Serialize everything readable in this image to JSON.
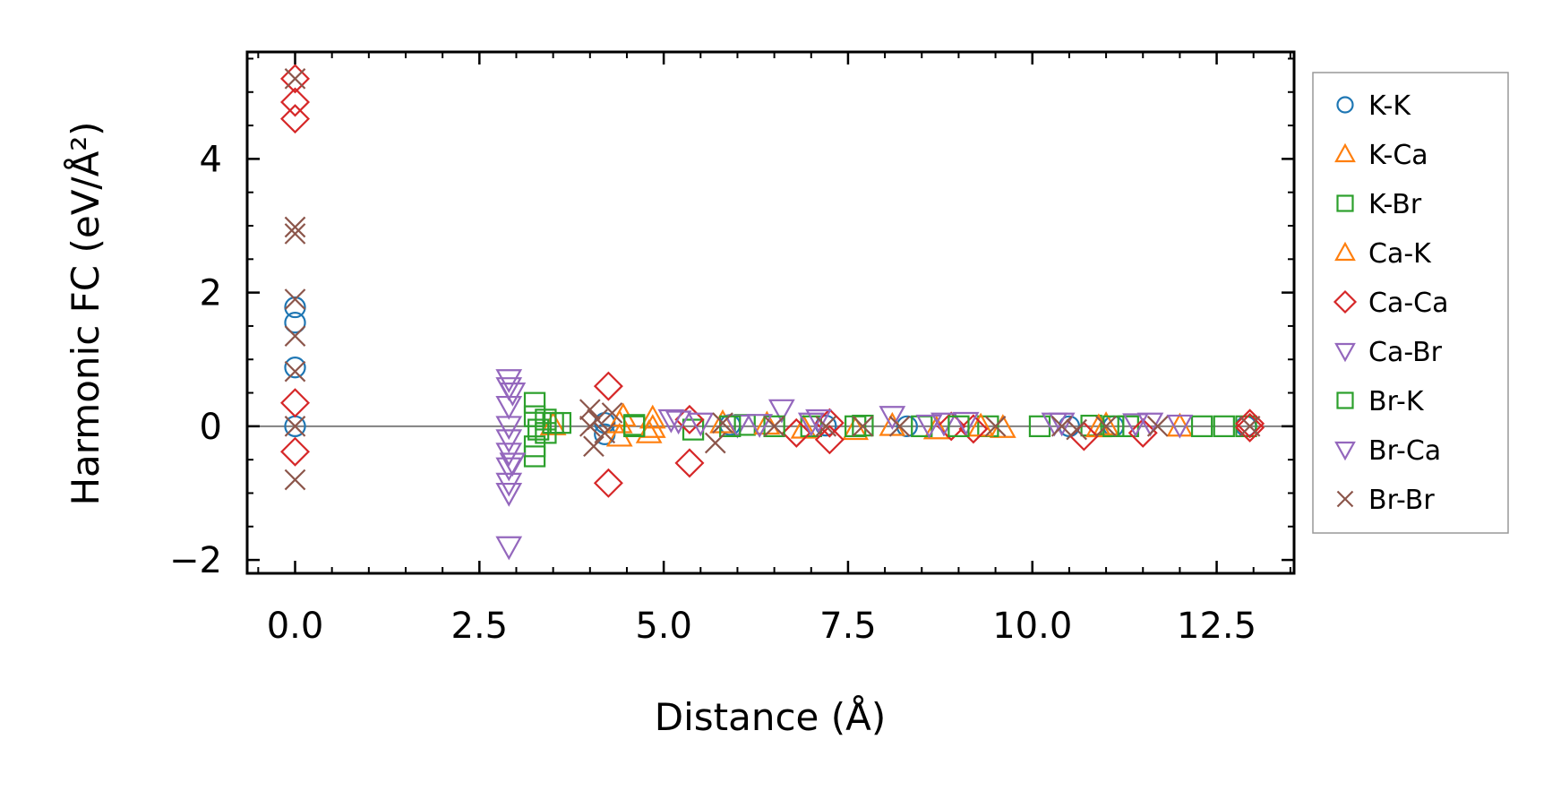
{
  "chart_data": {
    "type": "scatter",
    "title": "",
    "xlabel": "Distance (Å)",
    "ylabel": "Harmonic FC (eV/Å²)",
    "xlim": [
      -0.65,
      13.55
    ],
    "ylim": [
      -2.2,
      5.6
    ],
    "xticks": [
      "0.0",
      "2.5",
      "5.0",
      "7.5",
      "10.0",
      "12.5"
    ],
    "yticks": [
      "−2",
      "0",
      "2",
      "4"
    ],
    "legend_position": "outside-right",
    "series": [
      {
        "name": "K-K",
        "marker": "circle",
        "color": "#1f77b4",
        "points": [
          [
            0,
            1.78
          ],
          [
            0,
            1.55
          ],
          [
            0,
            0.88
          ],
          [
            0,
            0
          ],
          [
            4.2,
            -0.12
          ],
          [
            4.2,
            0.05
          ],
          [
            5.9,
            0.02
          ],
          [
            7.2,
            0.01
          ],
          [
            8.3,
            0.0
          ],
          [
            10.5,
            0.0
          ],
          [
            11.1,
            0.0
          ],
          [
            12.9,
            0.0
          ]
        ]
      },
      {
        "name": "K-Ca",
        "marker": "triangle-up",
        "color": "#ff7f0e",
        "points": [
          [
            3.5,
            0.02
          ],
          [
            4.4,
            -0.15
          ],
          [
            4.45,
            0.15
          ],
          [
            4.8,
            -0.1
          ],
          [
            4.85,
            0.12
          ],
          [
            5.8,
            0.05
          ],
          [
            6.9,
            -0.03
          ],
          [
            7.6,
            -0.05
          ],
          [
            8.7,
            -0.04
          ],
          [
            9.6,
            -0.02
          ],
          [
            11.0,
            0.02
          ],
          [
            12.0,
            0.0
          ]
        ]
      },
      {
        "name": "K-Br",
        "marker": "square",
        "color": "#2ca02c",
        "points": [
          [
            3.25,
            0.35
          ],
          [
            3.25,
            0.15
          ],
          [
            3.25,
            -0.3
          ],
          [
            3.25,
            -0.45
          ],
          [
            3.4,
            0.1
          ],
          [
            3.4,
            -0.1
          ],
          [
            3.6,
            0.05
          ],
          [
            4.6,
            0.02
          ],
          [
            5.4,
            -0.05
          ],
          [
            6.1,
            0.02
          ],
          [
            7.0,
            0.0
          ],
          [
            7.7,
            0.01
          ],
          [
            8.5,
            0.0
          ],
          [
            9.4,
            0.0
          ],
          [
            10.1,
            0.0
          ],
          [
            10.8,
            0.01
          ],
          [
            11.3,
            0.0
          ],
          [
            12.3,
            0.0
          ],
          [
            12.6,
            0.0
          ],
          [
            12.9,
            0.0
          ]
        ]
      },
      {
        "name": "Ca-K",
        "marker": "triangle-up",
        "color": "#ff7f0e",
        "points": [
          [
            4.4,
            0.05
          ],
          [
            4.85,
            -0.02
          ],
          [
            6.4,
            0.03
          ],
          [
            8.1,
            0.01
          ],
          [
            9.3,
            0.0
          ],
          [
            10.9,
            -0.01
          ]
        ]
      },
      {
        "name": "Ca-Ca",
        "marker": "diamond",
        "color": "#d62728",
        "points": [
          [
            0,
            5.2
          ],
          [
            0,
            4.85
          ],
          [
            0,
            4.6
          ],
          [
            0,
            0.35
          ],
          [
            0,
            -0.38
          ],
          [
            4.25,
            0.6
          ],
          [
            4.25,
            -0.85
          ],
          [
            5.35,
            -0.55
          ],
          [
            5.35,
            0.1
          ],
          [
            6.8,
            -0.1
          ],
          [
            7.25,
            -0.2
          ],
          [
            7.25,
            0.05
          ],
          [
            8.9,
            0.0
          ],
          [
            9.2,
            -0.04
          ],
          [
            10.7,
            -0.15
          ],
          [
            11.5,
            -0.1
          ],
          [
            12.95,
            -0.02
          ],
          [
            12.95,
            0.04
          ]
        ]
      },
      {
        "name": "Ca-Br",
        "marker": "triangle-down",
        "color": "#9467bd",
        "points": [
          [
            2.9,
            0.7
          ],
          [
            2.9,
            0.58
          ],
          [
            2.9,
            0.3
          ],
          [
            2.9,
            0.0
          ],
          [
            2.9,
            -0.2
          ],
          [
            2.9,
            -0.4
          ],
          [
            2.9,
            -0.62
          ],
          [
            2.9,
            -0.85
          ],
          [
            2.9,
            -1.0
          ],
          [
            2.9,
            -1.8
          ],
          [
            5.1,
            0.1
          ],
          [
            5.5,
            0.05
          ],
          [
            6.0,
            0.02
          ],
          [
            6.6,
            0.25
          ],
          [
            7.0,
            0.05
          ],
          [
            8.1,
            0.15
          ],
          [
            8.8,
            0.05
          ],
          [
            9.1,
            0.06
          ],
          [
            10.3,
            0.05
          ],
          [
            11.4,
            0.04
          ],
          [
            12.0,
            0.02
          ]
        ]
      },
      {
        "name": "Br-K",
        "marker": "square",
        "color": "#2ca02c",
        "points": [
          [
            3.3,
            -0.05
          ],
          [
            3.5,
            0.05
          ],
          [
            4.6,
            0.0
          ],
          [
            5.9,
            0.0
          ],
          [
            6.5,
            0.0
          ],
          [
            7.6,
            0.0
          ],
          [
            9.0,
            0.0
          ],
          [
            11.1,
            0.0
          ]
        ]
      },
      {
        "name": "Br-Ca",
        "marker": "triangle-down",
        "color": "#9467bd",
        "points": [
          [
            2.95,
            0.5
          ],
          [
            2.95,
            -0.55
          ],
          [
            5.2,
            0.08
          ],
          [
            6.3,
            0.03
          ],
          [
            7.1,
            0.1
          ],
          [
            8.6,
            0.02
          ],
          [
            10.4,
            0.05
          ],
          [
            11.6,
            0.05
          ]
        ]
      },
      {
        "name": "Br-Br",
        "marker": "x",
        "color": "#8c564b",
        "points": [
          [
            0,
            5.2
          ],
          [
            0,
            2.98
          ],
          [
            0,
            2.88
          ],
          [
            0,
            1.9
          ],
          [
            0,
            1.35
          ],
          [
            0,
            0.82
          ],
          [
            0,
            0
          ],
          [
            0,
            -0.8
          ],
          [
            4.0,
            0.25
          ],
          [
            4.05,
            -0.3
          ],
          [
            4.1,
            0.1
          ],
          [
            4.2,
            -0.1
          ],
          [
            4.3,
            0.2
          ],
          [
            4.0,
            0.0
          ],
          [
            5.7,
            -0.25
          ],
          [
            5.8,
            0.05
          ],
          [
            6.5,
            0.0
          ],
          [
            7.2,
            0.0
          ],
          [
            7.7,
            0.0
          ],
          [
            8.2,
            0.0
          ],
          [
            9.5,
            0.0
          ],
          [
            10.4,
            0.0
          ],
          [
            10.6,
            -0.05
          ],
          [
            11.0,
            0.0
          ],
          [
            11.7,
            0.0
          ],
          [
            12.95,
            0.0
          ]
        ]
      }
    ]
  }
}
